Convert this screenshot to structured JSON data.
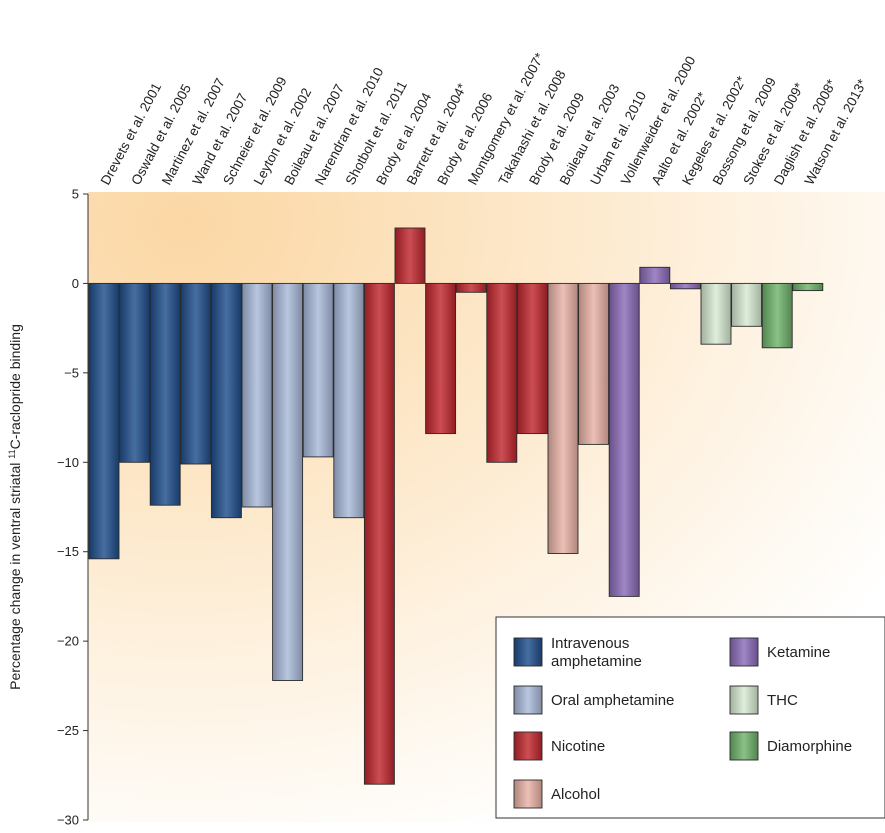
{
  "chart_data": {
    "type": "bar",
    "ylabel_prefix": "Percentage change in ventral striatal ",
    "ylabel_sup": "11",
    "ylabel_suffix": "C-raclopride binding",
    "xlabel": "",
    "ylim": [
      -30,
      5
    ],
    "yticks": [
      "5",
      "0",
      "-5",
      "-10",
      "-15",
      "-20",
      "-25",
      "-30"
    ],
    "categories": [
      "Drevets et al. 2001",
      "Oswald et al. 2005",
      "Martinez et al. 2007",
      "Wand et al. 2007",
      "Schneier et al. 2009",
      "Leyton et al. 2002",
      "Boileau et al. 2007",
      "Narendran et al. 2010",
      "Shotbolt et al. 2011",
      "Brody et al. 2004",
      "Barrett et al. 2004*",
      "Brody et al. 2006",
      "Montgomery et al. 2007*",
      "Takahashi et al. 2008",
      "Brody et al. 2009",
      "Boileau et al. 2003",
      "Urban et al. 2010",
      "Vollenweider et al. 2000",
      "Aalto et al. 2002*",
      "Kegeles et al. 2002*",
      "Bossong et al. 2009",
      "Stokes et al. 2009*",
      "Daglish et al. 2008*",
      "Watson et al. 2013*"
    ],
    "values": [
      -15.4,
      -10.0,
      -12.4,
      -10.1,
      -13.1,
      -12.5,
      -22.2,
      -9.7,
      -13.1,
      -28.0,
      3.1,
      -8.4,
      -0.5,
      -10.0,
      -8.4,
      -15.1,
      -9.0,
      -17.5,
      0.9,
      -0.3,
      -3.4,
      -2.4,
      -3.6,
      -0.4
    ],
    "groups": [
      "Intravenous amphetamine",
      "Intravenous amphetamine",
      "Intravenous amphetamine",
      "Intravenous amphetamine",
      "Intravenous amphetamine",
      "Oral amphetamine",
      "Oral amphetamine",
      "Oral amphetamine",
      "Oral amphetamine",
      "Nicotine",
      "Nicotine",
      "Nicotine",
      "Nicotine",
      "Nicotine",
      "Nicotine",
      "Alcohol",
      "Alcohol",
      "Ketamine",
      "Ketamine",
      "Ketamine",
      "THC",
      "THC",
      "Diamorphine",
      "Diamorphine"
    ],
    "legend": [
      {
        "label": "Intravenous amphetamine",
        "color": "#1f4e8c"
      },
      {
        "label": "Oral amphetamine",
        "color": "#a9b9d9"
      },
      {
        "label": "Nicotine",
        "color": "#c1272d"
      },
      {
        "label": "Alcohol",
        "color": "#e9b2a6"
      },
      {
        "label": "Ketamine",
        "color": "#8a6bb8"
      },
      {
        "label": "THC",
        "color": "#d8ead3"
      },
      {
        "label": "Diamorphine",
        "color": "#6fb36b"
      }
    ],
    "legend_placement": "bottom-right",
    "grid": false
  }
}
